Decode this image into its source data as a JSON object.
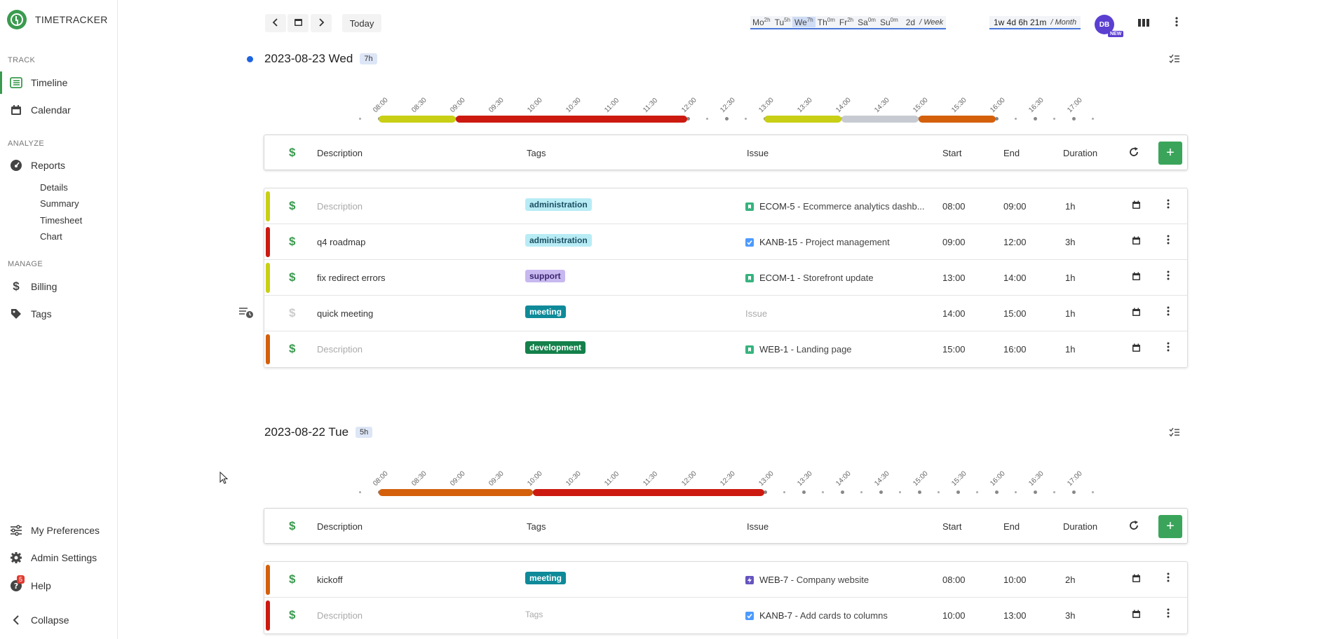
{
  "app": {
    "name": "TIMETRACKER"
  },
  "sidebar": {
    "sections": {
      "track": "TRACK",
      "analyze": "ANALYZE",
      "manage": "MANAGE"
    },
    "items": {
      "timeline": "Timeline",
      "calendar": "Calendar",
      "reports": "Reports",
      "billing": "Billing",
      "tags": "Tags"
    },
    "report_subitems": [
      "Details",
      "Summary",
      "Timesheet",
      "Chart"
    ],
    "bottom": {
      "preferences": "My Preferences",
      "admin": "Admin Settings",
      "help": "Help",
      "help_badge": "5",
      "collapse": "Collapse"
    }
  },
  "toolbar": {
    "today": "Today",
    "week": [
      {
        "d": "Mo",
        "h": "2h"
      },
      {
        "d": "Tu",
        "h": "5h"
      },
      {
        "d": "We",
        "h": "7h"
      },
      {
        "d": "Th",
        "h": "0m"
      },
      {
        "d": "Fr",
        "h": "2h"
      },
      {
        "d": "Sa",
        "h": "0m"
      },
      {
        "d": "Su",
        "h": "0m"
      }
    ],
    "week_total": "2d",
    "week_label": "/ Week",
    "month_total": "1w 4d 6h 21m",
    "month_label": "/ Month",
    "avatar": "DB",
    "new_badge": "NEW"
  },
  "table_headers": {
    "description": "Description",
    "tags": "Tags",
    "issue": "Issue",
    "start": "Start",
    "end": "End",
    "duration": "Duration"
  },
  "days": [
    {
      "date": "2023-08-23 Wed",
      "total": "7h",
      "current": true,
      "timeline_labels": [
        "08:00",
        "08:30",
        "09:00",
        "09:30",
        "10:00",
        "10:30",
        "11:00",
        "11:30",
        "12:00",
        "12:30",
        "13:00",
        "13:30",
        "14:00",
        "14:30",
        "15:00",
        "15:30",
        "16:00",
        "16:30",
        "17:00"
      ],
      "entries": [
        {
          "color": "#c8cf14",
          "billable": true,
          "description": "",
          "desc_placeholder": "Description",
          "tag": "administration",
          "tag_bg": "#b8ecf5",
          "tag_fg": "#1a4f63",
          "issue_icon": "story",
          "issue_key": "ECOM-5",
          "issue_title": "Ecommerce analytics dashb...",
          "start": "08:00",
          "end": "09:00",
          "duration": "1h"
        },
        {
          "color": "#cc1a10",
          "billable": true,
          "description": "q4 roadmap",
          "tag": "administration",
          "tag_bg": "#b8ecf5",
          "tag_fg": "#1a4f63",
          "issue_icon": "task",
          "issue_key": "KANB-15",
          "issue_title": "Project management",
          "start": "09:00",
          "end": "12:00",
          "duration": "3h"
        },
        {
          "color": "#c8cf14",
          "billable": true,
          "description": "fix redirect errors",
          "tag": "support",
          "tag_bg": "#c8b8f0",
          "tag_fg": "#3a2670",
          "issue_icon": "story",
          "issue_key": "ECOM-1",
          "issue_title": "Storefront update",
          "start": "13:00",
          "end": "14:00",
          "duration": "1h"
        },
        {
          "color": "",
          "billable": false,
          "description": "quick meeting",
          "tag": "meeting",
          "tag_bg": "#0e8a99",
          "tag_fg": "#ffffff",
          "issue_icon": "",
          "issue_key": "",
          "issue_title": "",
          "issue_placeholder": "Issue",
          "start": "14:00",
          "end": "15:00",
          "duration": "1h"
        },
        {
          "color": "#d4600c",
          "billable": true,
          "description": "",
          "desc_placeholder": "Description",
          "tag": "development",
          "tag_bg": "#14804a",
          "tag_fg": "#ffffff",
          "issue_icon": "story",
          "issue_key": "WEB-1",
          "issue_title": "Landing page",
          "start": "15:00",
          "end": "16:00",
          "duration": "1h"
        }
      ]
    },
    {
      "date": "2023-08-22 Tue",
      "total": "5h",
      "current": false,
      "timeline_labels": [
        "08:00",
        "08:30",
        "09:00",
        "09:30",
        "10:00",
        "10:30",
        "11:00",
        "11:30",
        "12:00",
        "12:30",
        "13:00",
        "13:30",
        "14:00",
        "14:30",
        "15:00",
        "15:30",
        "16:00",
        "16:30",
        "17:00"
      ],
      "entries": [
        {
          "color": "#d4600c",
          "billable": true,
          "description": "kickoff",
          "tag": "meeting",
          "tag_bg": "#0e8a99",
          "tag_fg": "#ffffff",
          "issue_icon": "epic",
          "issue_key": "WEB-7",
          "issue_title": "Company website",
          "start": "08:00",
          "end": "10:00",
          "duration": "2h"
        },
        {
          "color": "#cc1a10",
          "billable": true,
          "description": "",
          "desc_placeholder": "Description",
          "tag": "",
          "tag_placeholder": "Tags",
          "issue_icon": "task",
          "issue_key": "KANB-7",
          "issue_title": "Add cards to columns",
          "start": "10:00",
          "end": "13:00",
          "duration": "3h"
        }
      ]
    }
  ]
}
